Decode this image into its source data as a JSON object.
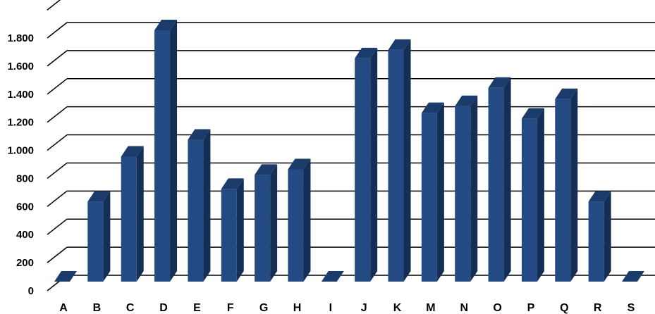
{
  "chart_data": {
    "type": "bar",
    "style": "3d-column",
    "title": "",
    "xlabel": "",
    "ylabel": "",
    "categories": [
      "A",
      "B",
      "C",
      "D",
      "E",
      "F",
      "G",
      "H",
      "I",
      "J",
      "K",
      "M",
      "N",
      "O",
      "P",
      "Q",
      "R",
      "S"
    ],
    "values": [
      0,
      570,
      890,
      1790,
      1010,
      660,
      760,
      800,
      0,
      1590,
      1650,
      1200,
      1250,
      1380,
      1160,
      1300,
      570,
      0
    ],
    "y_tick_labels": [
      "0",
      "200",
      "400",
      "600",
      "800",
      "1.000",
      "1.200",
      "1.400",
      "1.600",
      "1.800"
    ],
    "y_ticks": [
      0,
      200,
      400,
      600,
      800,
      1000,
      1200,
      1400,
      1600,
      1800
    ],
    "ylim": [
      0,
      2000
    ],
    "grid": true,
    "legend": "none",
    "colors": {
      "bar_front": "#234a82",
      "bar_side": "#142e56",
      "bar_top": "#1b3b6b",
      "grid": "#000000",
      "text": "#000000"
    }
  }
}
